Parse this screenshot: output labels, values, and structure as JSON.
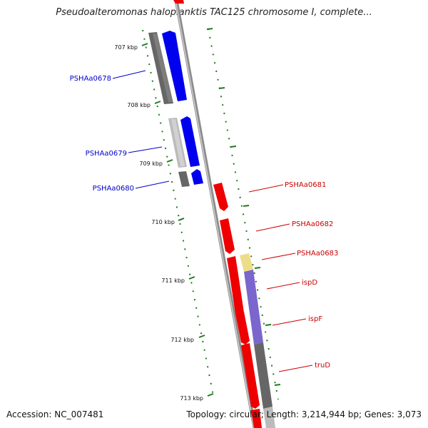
{
  "title": "Pseudoalteromonas haloplanktis TAC125 chromosome I, complete...",
  "footer": {
    "accession": "Accession: NC_007481",
    "summary": "Topology: circular; Length: 3,214,944 bp; Genes: 3,073"
  },
  "colors": {
    "backbone": "#8c8c8c",
    "scale_tick": "#1f7a1f",
    "left_strand_label": "#0000cc",
    "right_strand_label": "#cc0000",
    "gene_blue": "#0000ee",
    "gene_red": "#ee0000",
    "feature_gray": "#666666",
    "feature_purple": "#7a66cc",
    "feature_yellow": "#eedd88"
  },
  "scale": {
    "ticks": [
      "707 kbp",
      "708 kbp",
      "709 kbp",
      "710 kbp",
      "711 kbp",
      "712 kbp",
      "713 kbp"
    ]
  },
  "genes_left": [
    "PSHAa0678",
    "PSHAa0679",
    "PSHAa0680"
  ],
  "genes_right": [
    "PSHAa0681",
    "PSHAa0682",
    "PSHAa0683",
    "ispD",
    "ispF",
    "truD"
  ]
}
